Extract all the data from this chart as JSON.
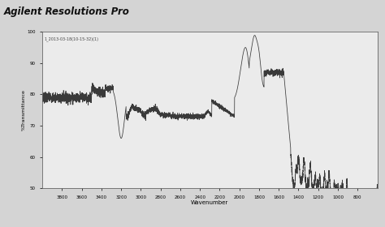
{
  "title": "Agilent Resolutions Pro",
  "sample_label": "1_2013-03-18(10-15-32)(1)",
  "xlabel": "Wavenumber",
  "ylabel": "%Transmittance",
  "xlim": [
    4000,
    600
  ],
  "ylim": [
    50,
    100
  ],
  "yticks": [
    50,
    60,
    70,
    80,
    90,
    100
  ],
  "xticks": [
    3800,
    3600,
    3400,
    3200,
    3000,
    2800,
    2600,
    2400,
    2200,
    2000,
    1800,
    1600,
    1400,
    1200,
    1000,
    800
  ],
  "background_color": "#d4d4d4",
  "plot_bg_color": "#ebebeb",
  "line_color": "#3a3a3a",
  "title_color": "#111111"
}
